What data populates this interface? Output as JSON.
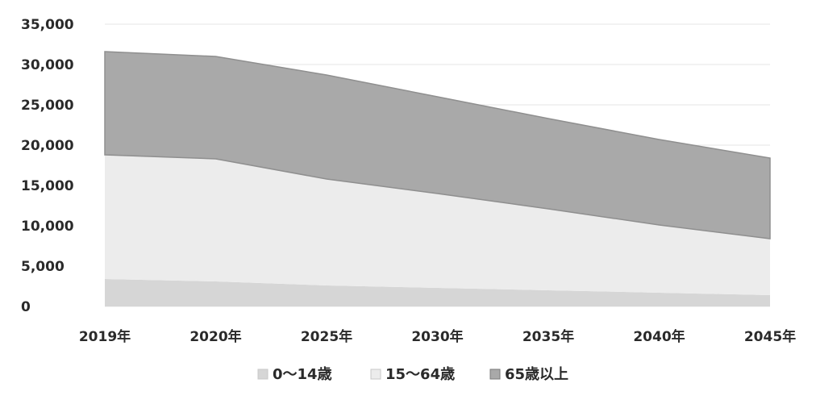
{
  "chart_data": {
    "type": "area",
    "stacked": true,
    "categories": [
      "2019年",
      "2020年",
      "2025年",
      "2030年",
      "2035年",
      "2040年",
      "2045年"
    ],
    "series": [
      {
        "name": "0～14歳",
        "values": [
          3400,
          3100,
          2600,
          2300,
          2000,
          1700,
          1400
        ],
        "color": "#d6d6d6"
      },
      {
        "name": "15～64歳",
        "values": [
          15400,
          15200,
          13200,
          11700,
          10100,
          8400,
          7000
        ],
        "color": "#ececec"
      },
      {
        "name": "65歳以上",
        "values": [
          12800,
          12700,
          12900,
          12000,
          11200,
          10600,
          10000
        ],
        "color": "#a9a9a9"
      }
    ],
    "yticks": [
      "0",
      "5,000",
      "10,000",
      "15,000",
      "20,000",
      "25,000",
      "30,000",
      "35,000"
    ],
    "ylim": [
      0,
      35000
    ],
    "grid": true,
    "legend_position": "bottom"
  }
}
